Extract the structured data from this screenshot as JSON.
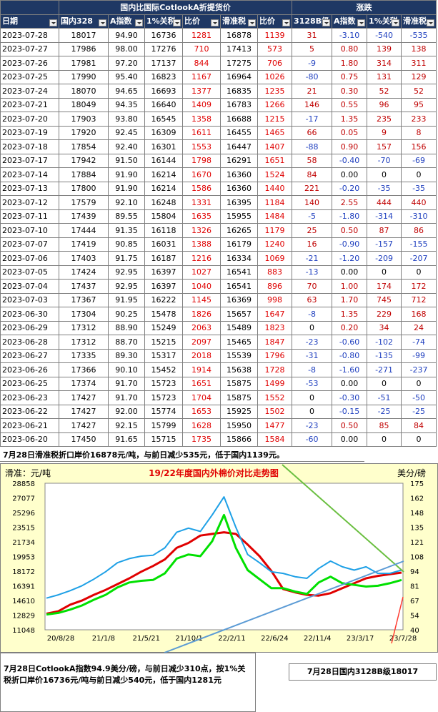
{
  "header": {
    "group1": "国内比国际CotlookA折提货价",
    "group2": "涨跌",
    "cols": [
      "日期",
      "国内328",
      "A指数",
      "1%关税",
      "比价",
      "滑准税",
      "比价",
      "3128B级",
      "A指数",
      "1%关税",
      "滑准税"
    ]
  },
  "rows": [
    [
      "2023-07-28",
      "18017",
      "94.90",
      "16736",
      "1281",
      "16878",
      "1139",
      "31",
      "-3.10",
      "-540",
      "-535"
    ],
    [
      "2023-07-27",
      "17986",
      "98.00",
      "17276",
      "710",
      "17413",
      "573",
      "5",
      "0.80",
      "139",
      "138"
    ],
    [
      "2023-07-26",
      "17981",
      "97.20",
      "17137",
      "844",
      "17275",
      "706",
      "-9",
      "1.80",
      "314",
      "311"
    ],
    [
      "2023-07-25",
      "17990",
      "95.40",
      "16823",
      "1167",
      "16964",
      "1026",
      "-80",
      "0.75",
      "131",
      "129"
    ],
    [
      "2023-07-24",
      "18070",
      "94.65",
      "16693",
      "1377",
      "16835",
      "1235",
      "21",
      "0.30",
      "52",
      "52"
    ],
    [
      "2023-07-21",
      "18049",
      "94.35",
      "16640",
      "1409",
      "16783",
      "1266",
      "146",
      "0.55",
      "96",
      "95"
    ],
    [
      "2023-07-20",
      "17903",
      "93.80",
      "16545",
      "1358",
      "16688",
      "1215",
      "-17",
      "1.35",
      "235",
      "233"
    ],
    [
      "2023-07-19",
      "17920",
      "92.45",
      "16309",
      "1611",
      "16455",
      "1465",
      "66",
      "0.05",
      "9",
      "8"
    ],
    [
      "2023-07-18",
      "17854",
      "92.40",
      "16301",
      "1553",
      "16447",
      "1407",
      "-88",
      "0.90",
      "157",
      "156"
    ],
    [
      "2023-07-17",
      "17942",
      "91.50",
      "16144",
      "1798",
      "16291",
      "1651",
      "58",
      "-0.40",
      "-70",
      "-69"
    ],
    [
      "2023-07-14",
      "17884",
      "91.90",
      "16214",
      "1670",
      "16360",
      "1524",
      "84",
      "0.00",
      "0",
      "0"
    ],
    [
      "2023-07-13",
      "17800",
      "91.90",
      "16214",
      "1586",
      "16360",
      "1440",
      "221",
      "-0.20",
      "-35",
      "-35"
    ],
    [
      "2023-07-12",
      "17579",
      "92.10",
      "16248",
      "1331",
      "16395",
      "1184",
      "140",
      "2.55",
      "444",
      "440"
    ],
    [
      "2023-07-11",
      "17439",
      "89.55",
      "15804",
      "1635",
      "15955",
      "1484",
      "-5",
      "-1.80",
      "-314",
      "-310"
    ],
    [
      "2023-07-10",
      "17444",
      "91.35",
      "16118",
      "1326",
      "16265",
      "1179",
      "25",
      "0.50",
      "87",
      "86"
    ],
    [
      "2023-07-07",
      "17419",
      "90.85",
      "16031",
      "1388",
      "16179",
      "1240",
      "16",
      "-0.90",
      "-157",
      "-155"
    ],
    [
      "2023-07-06",
      "17403",
      "91.75",
      "16187",
      "1216",
      "16334",
      "1069",
      "-21",
      "-1.20",
      "-209",
      "-207"
    ],
    [
      "2023-07-05",
      "17424",
      "92.95",
      "16397",
      "1027",
      "16541",
      "883",
      "-13",
      "0.00",
      "0",
      "0"
    ],
    [
      "2023-07-04",
      "17437",
      "92.95",
      "16397",
      "1040",
      "16541",
      "896",
      "70",
      "1.00",
      "174",
      "172"
    ],
    [
      "2023-07-03",
      "17367",
      "91.95",
      "16222",
      "1145",
      "16369",
      "998",
      "63",
      "1.70",
      "745",
      "712"
    ],
    [
      "2023-06-30",
      "17304",
      "90.25",
      "15478",
      "1826",
      "15657",
      "1647",
      "-8",
      "1.35",
      "229",
      "168"
    ],
    [
      "2023-06-29",
      "17312",
      "88.90",
      "15249",
      "2063",
      "15489",
      "1823",
      "0",
      "0.20",
      "34",
      "24"
    ],
    [
      "2023-06-28",
      "17312",
      "88.70",
      "15215",
      "2097",
      "15465",
      "1847",
      "-23",
      "-0.60",
      "-102",
      "-74"
    ],
    [
      "2023-06-27",
      "17335",
      "89.30",
      "15317",
      "2018",
      "15539",
      "1796",
      "-31",
      "-0.80",
      "-135",
      "-99"
    ],
    [
      "2023-06-26",
      "17366",
      "90.10",
      "15452",
      "1914",
      "15638",
      "1728",
      "-8",
      "-1.60",
      "-271",
      "-237"
    ],
    [
      "2023-06-25",
      "17374",
      "91.70",
      "15723",
      "1651",
      "15875",
      "1499",
      "-53",
      "0.00",
      "0",
      "0"
    ],
    [
      "2023-06-23",
      "17427",
      "91.70",
      "15723",
      "1704",
      "15875",
      "1552",
      "0",
      "-0.30",
      "-51",
      "-50"
    ],
    [
      "2023-06-22",
      "17427",
      "92.00",
      "15774",
      "1653",
      "15925",
      "1502",
      "0",
      "-0.15",
      "-25",
      "-25"
    ],
    [
      "2023-06-21",
      "17427",
      "92.15",
      "15799",
      "1628",
      "15950",
      "1477",
      "-23",
      "0.50",
      "85",
      "84"
    ],
    [
      "2023-06-20",
      "17450",
      "91.65",
      "15715",
      "1735",
      "15866",
      "1584",
      "-60",
      "0.00",
      "0",
      "0"
    ]
  ],
  "notes": {
    "top": "7月28日滑准税折口岸价16878元/吨，与前日减少535元，低于国内1139元。",
    "bottom_left": "7月28日CotlookA指数94.9美分/磅，与前日减少310点，按1%关税折口岸价16736元/吨与前日减少540元，低于国内1281元",
    "bottom_right": "7月28日国内3128B级18017"
  },
  "colors": {
    "header_bg": "#1f3864",
    "chart_bg": "#ffffcc",
    "red": "#e00000",
    "blue": "#1f3fbf",
    "cyan": "#1ea0e6",
    "green": "#00e000"
  },
  "chart_data": {
    "type": "line",
    "title": "19/22年度国内外棉价对比走势图",
    "left_axis_label": "滑准：元/吨",
    "right_axis_label": "美分/磅",
    "left_ticks": [
      "28858",
      "27077",
      "25296",
      "23515",
      "21734",
      "19953",
      "18172",
      "16391",
      "14610",
      "12829",
      "11048"
    ],
    "right_ticks": [
      "175",
      "162",
      "148",
      "135",
      "121",
      "108",
      "94",
      "81",
      "67",
      "54",
      "40"
    ],
    "x_ticks": [
      "20/8/28",
      "21/1/8",
      "21/5/21",
      "21/10/1",
      "22/2/11",
      "22/6/24",
      "22/11/4",
      "23/3/17",
      "23/7/28"
    ],
    "ylim_left": [
      11048,
      28858
    ],
    "ylim_right": [
      40,
      175
    ],
    "series": [
      {
        "color": "#e00000",
        "values": [
          13000,
          13300,
          14100,
          14600,
          15300,
          15900,
          16600,
          17300,
          18100,
          18800,
          19600,
          21000,
          21600,
          22500,
          22700,
          22900,
          22700,
          21400,
          20000,
          18200,
          16000,
          15600,
          15300,
          15200,
          15500,
          16100,
          16700,
          17300,
          17600,
          17800,
          18000
        ]
      },
      {
        "color": "#1ea0e6",
        "values": [
          14900,
          15300,
          15800,
          16400,
          17200,
          18100,
          19200,
          19700,
          20000,
          20100,
          21000,
          22900,
          23400,
          23000,
          25000,
          27200,
          23500,
          20200,
          19200,
          18100,
          17900,
          17500,
          17300,
          18500,
          19400,
          18700,
          18300,
          18700,
          17900,
          17900,
          18300
        ]
      },
      {
        "color": "#00e000",
        "values": [
          12900,
          13100,
          13500,
          14000,
          14700,
          15300,
          16200,
          16800,
          17000,
          17100,
          17900,
          19700,
          20200,
          20000,
          21800,
          25000,
          21000,
          18300,
          17200,
          16100,
          16100,
          15700,
          15400,
          16800,
          17500,
          16700,
          16500,
          16300,
          16400,
          16700,
          17100
        ]
      }
    ]
  }
}
